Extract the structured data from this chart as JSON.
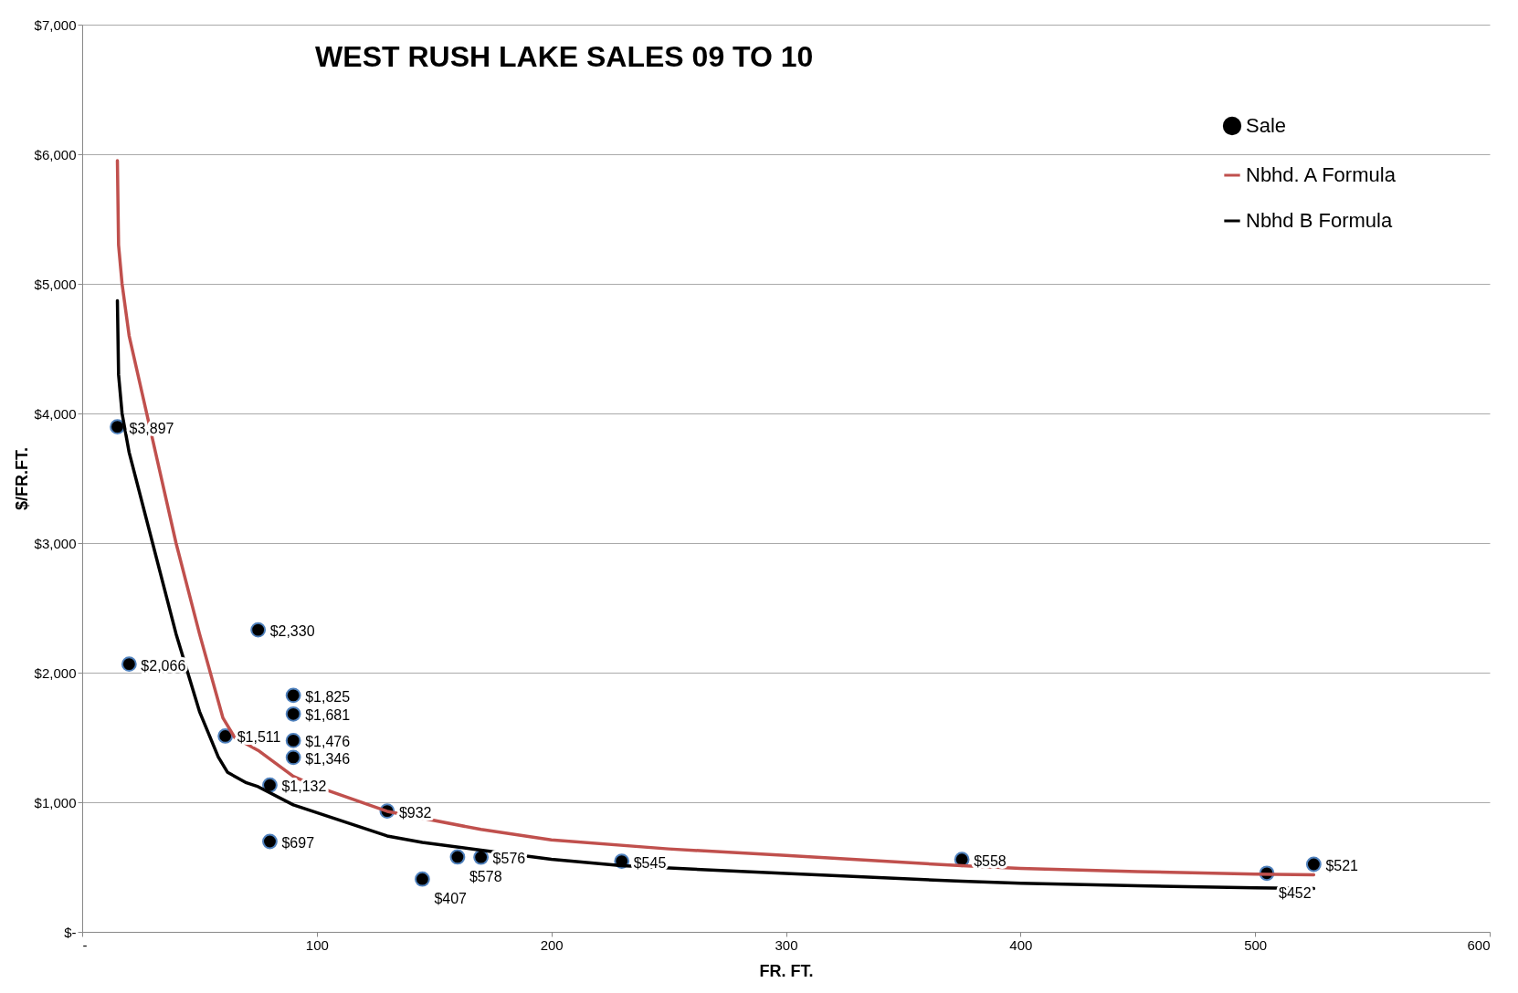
{
  "chart_data": {
    "type": "scatter",
    "title": "WEST RUSH LAKE SALES 09 TO 10",
    "xlabel": "FR. FT.",
    "ylabel": "$/FR.FT.",
    "xlim": [
      0,
      600
    ],
    "xticks": [
      {
        "value": 0,
        "label": "-"
      },
      100,
      200,
      300,
      400,
      500,
      600
    ],
    "ylim": [
      0,
      7000
    ],
    "yticks": [
      {
        "value": 0,
        "label": "$-"
      },
      {
        "value": 1000,
        "label": "$1,000"
      },
      {
        "value": 2000,
        "label": "$2,000"
      },
      {
        "value": 3000,
        "label": "$3,000"
      },
      {
        "value": 4000,
        "label": "$4,000"
      },
      {
        "value": 5000,
        "label": "$5,000"
      },
      {
        "value": 6000,
        "label": "$6,000"
      },
      {
        "value": 7000,
        "label": "$7,000"
      }
    ],
    "grid": "y",
    "legend": "top right",
    "series": [
      {
        "name": "Sale",
        "marker": "circle",
        "color": "#000000",
        "x": [
          15,
          20,
          61,
          75,
          80,
          80,
          90,
          90,
          90,
          90,
          130,
          145,
          160,
          170,
          230,
          375,
          505,
          525
        ],
        "values": [
          3897,
          2066,
          1511,
          2330,
          1132,
          697,
          1825,
          1681,
          1476,
          1346,
          932,
          407,
          578,
          576,
          545,
          558,
          452,
          521
        ],
        "value_labels": [
          "$3,897",
          "$2,066",
          "$1,511",
          "$2,330",
          "$1,132",
          "$697",
          "$1,825",
          "$1,681",
          "$1,476",
          "$1,346",
          "$932",
          "$407",
          "$578",
          "$576",
          "$545",
          "$558",
          "$452",
          "$521"
        ]
      },
      {
        "name": "Nbhd. A Formula",
        "type": "line",
        "color": "#c0504d",
        "x": [
          15,
          15.5,
          17,
          20,
          30,
          40,
          50,
          60,
          65,
          75,
          90,
          100,
          130,
          170,
          200,
          250,
          300,
          375,
          400,
          450,
          500,
          525
        ],
        "values": [
          5950,
          5300,
          5000,
          4600,
          3800,
          3000,
          2300,
          1650,
          1500,
          1400,
          1200,
          1120,
          930,
          790,
          710,
          640,
          590,
          510,
          490,
          465,
          445,
          440
        ]
      },
      {
        "name": "Nbhd B Formula",
        "type": "line",
        "color": "#000000",
        "x": [
          15,
          15.5,
          17,
          20,
          30,
          40,
          50,
          58,
          62,
          70,
          75,
          90,
          130,
          145,
          170,
          200,
          230,
          300,
          375,
          400,
          450,
          500,
          525
        ],
        "values": [
          4870,
          4300,
          4000,
          3700,
          3000,
          2300,
          1700,
          1350,
          1230,
          1150,
          1120,
          980,
          740,
          690,
          630,
          560,
          510,
          450,
          390,
          375,
          355,
          340,
          335
        ]
      }
    ]
  }
}
